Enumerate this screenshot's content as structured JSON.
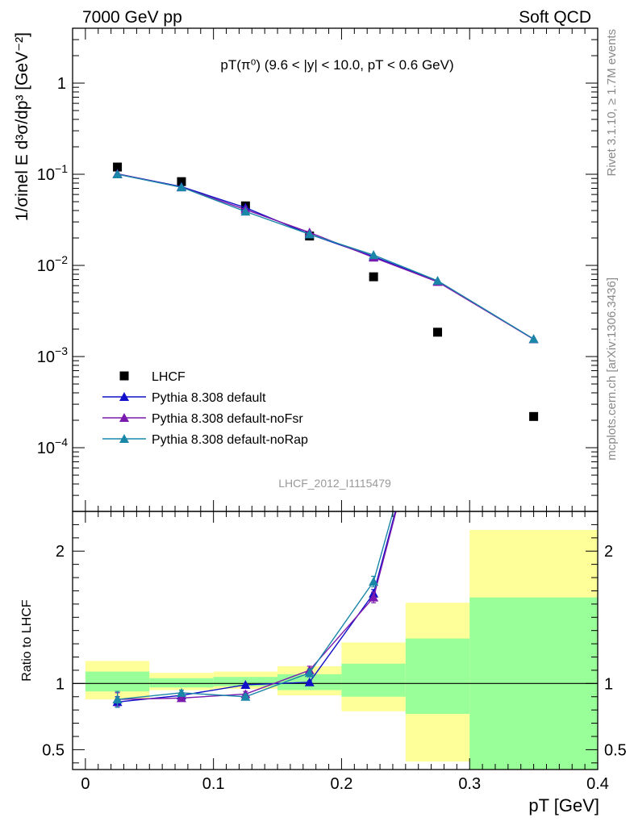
{
  "header": {
    "left_label": "7000 GeV pp",
    "right_label": "Soft QCD"
  },
  "side_labels": {
    "rivet": "Rivet 3.1.10, ≥ 1.7M events",
    "mcplots": "mcplots.cern.ch [arXiv:1306.3436]"
  },
  "analysis_id": "LHCF_2012_I1115479",
  "chart_data": [
    {
      "type": "scatter",
      "title": "pT(π⁰) (9.6 < |y| < 10.0, pT < 0.6 GeV)",
      "ylabel": "1/σinel E d³σ/dp³ [GeV⁻²]",
      "xlabel": "",
      "yscale": "log",
      "ylim": [
        2e-05,
        4
      ],
      "xlim": [
        -0.01,
        0.4
      ],
      "y_ticks": [
        {
          "value": 0.0001,
          "base": "10",
          "exp": "−4"
        },
        {
          "value": 0.001,
          "base": "10",
          "exp": "−3"
        },
        {
          "value": 0.01,
          "base": "10",
          "exp": "−2"
        },
        {
          "value": 0.1,
          "base": "10",
          "exp": "−1"
        },
        {
          "value": 1,
          "base": "1",
          "exp": ""
        }
      ],
      "legend_position": "bottom-left",
      "series": [
        {
          "name": "LHCF",
          "marker": "square",
          "color": "#000000",
          "x": [
            0.025,
            0.075,
            0.125,
            0.175,
            0.225,
            0.275,
            0.35
          ],
          "y": [
            0.12,
            0.083,
            0.045,
            0.021,
            0.0075,
            0.00185,
            0.00022
          ]
        },
        {
          "name": "Pythia 8.308 default",
          "marker": "triangle",
          "color": "#1010c8",
          "x": [
            0.025,
            0.075,
            0.125,
            0.175,
            0.225,
            0.275,
            0.35
          ],
          "y": [
            0.101,
            0.073,
            0.043,
            0.022,
            0.0125,
            0.0067,
            0.00155
          ]
        },
        {
          "name": "Pythia 8.308 default-noFsr",
          "marker": "triangle",
          "color": "#7a1aae",
          "x": [
            0.025,
            0.075,
            0.125,
            0.175,
            0.225,
            0.275,
            0.35
          ],
          "y": [
            0.101,
            0.072,
            0.041,
            0.023,
            0.0122,
            0.0066,
            0.00155
          ]
        },
        {
          "name": "Pythia 8.308 default-noRap",
          "marker": "triangle",
          "color": "#1a86a8",
          "x": [
            0.025,
            0.075,
            0.125,
            0.175,
            0.225,
            0.275,
            0.35
          ],
          "y": [
            0.1,
            0.072,
            0.039,
            0.022,
            0.013,
            0.0068,
            0.00156
          ]
        }
      ]
    },
    {
      "type": "line",
      "ylabel": "Ratio to LHCF",
      "xlabel": "pT [GeV]",
      "ylim": [
        0.35,
        2.3
      ],
      "xlim": [
        -0.01,
        0.4
      ],
      "x_ticks": [
        0,
        0.1,
        0.2,
        0.3,
        0.4
      ],
      "x_tick_labels": [
        "0",
        "0.1",
        "0.2",
        "0.3",
        "0.4"
      ],
      "y_ticks": [
        0.5,
        1,
        2
      ],
      "y_tick_labels": [
        "0.5",
        "1",
        "2"
      ],
      "bands": [
        {
          "x0": 0.0,
          "x1": 0.05,
          "yellow": [
            0.88,
            1.17
          ],
          "green": [
            0.94,
            1.09
          ]
        },
        {
          "x0": 0.05,
          "x1": 0.1,
          "yellow": [
            0.95,
            1.08
          ],
          "green": [
            0.97,
            1.04
          ]
        },
        {
          "x0": 0.1,
          "x1": 0.15,
          "yellow": [
            0.96,
            1.09
          ],
          "green": [
            0.98,
            1.05
          ]
        },
        {
          "x0": 0.15,
          "x1": 0.2,
          "yellow": [
            0.91,
            1.13
          ],
          "green": [
            0.95,
            1.07
          ]
        },
        {
          "x0": 0.2,
          "x1": 0.25,
          "yellow": [
            0.79,
            1.31
          ],
          "green": [
            0.9,
            1.15
          ]
        },
        {
          "x0": 0.25,
          "x1": 0.3,
          "yellow": [
            0.41,
            1.61
          ],
          "green": [
            0.77,
            1.34
          ]
        },
        {
          "x0": 0.3,
          "x1": 0.4,
          "yellow": [
            0.35,
            2.16
          ],
          "green": [
            0.35,
            1.65
          ]
        }
      ],
      "series": [
        {
          "name": "Pythia 8.308 default",
          "color": "#1010c8",
          "x": [
            0.025,
            0.075,
            0.125,
            0.175,
            0.225,
            0.275
          ],
          "y": [
            0.86,
            0.91,
            0.99,
            1.01,
            1.68,
            3.5
          ],
          "err": [
            0.04,
            0.02,
            0.01,
            0.01,
            0.03,
            0
          ]
        },
        {
          "name": "Pythia 8.308 default-noFsr",
          "color": "#7a1aae",
          "x": [
            0.025,
            0.075,
            0.125,
            0.175,
            0.225,
            0.275
          ],
          "y": [
            0.88,
            0.89,
            0.92,
            1.1,
            1.65,
            3.5
          ],
          "err": [
            0.05,
            0.02,
            0.02,
            0.03,
            0.04,
            0
          ]
        },
        {
          "name": "Pythia 8.308 default-noRap",
          "color": "#1a86a8",
          "x": [
            0.025,
            0.075,
            0.125,
            0.175,
            0.225,
            0.275
          ],
          "y": [
            0.88,
            0.93,
            0.9,
            1.08,
            1.77,
            3.5
          ],
          "err": [
            0.06,
            0.02,
            0.02,
            0.03,
            0.04,
            0
          ]
        }
      ]
    }
  ]
}
